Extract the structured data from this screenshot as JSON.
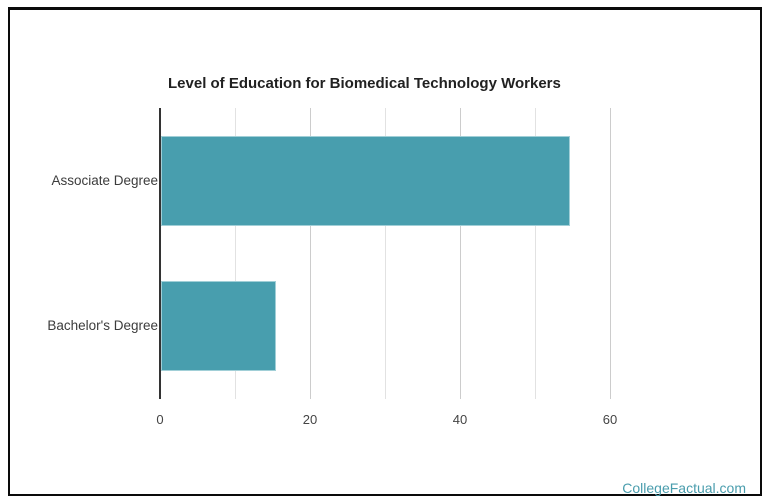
{
  "page": {
    "background": "#ffffff",
    "frame_border_color": "#0a0a0a"
  },
  "footer": {
    "brand_link": "CollegeFactual.com",
    "brand_color": "#4a9dad"
  },
  "chart_data": {
    "type": "bar",
    "orientation": "horizontal",
    "title": "Level of Education for Biomedical Technology Workers",
    "categories": [
      "Associate Degree",
      "Bachelor's Degree"
    ],
    "values": [
      54.5,
      15.3
    ],
    "xlabel": "",
    "ylabel": "",
    "xlim": [
      0,
      60
    ],
    "x_ticks": [
      0,
      20,
      40,
      60
    ],
    "x_gridlines": [
      0,
      10,
      20,
      30,
      40,
      50,
      60
    ],
    "grid": true,
    "legend": "none",
    "bar_color": "#489eae",
    "title_color": "#212121",
    "axis_text_color": "#444444",
    "axis_line_color": "#333333",
    "gridline_color": "#cccccc"
  }
}
